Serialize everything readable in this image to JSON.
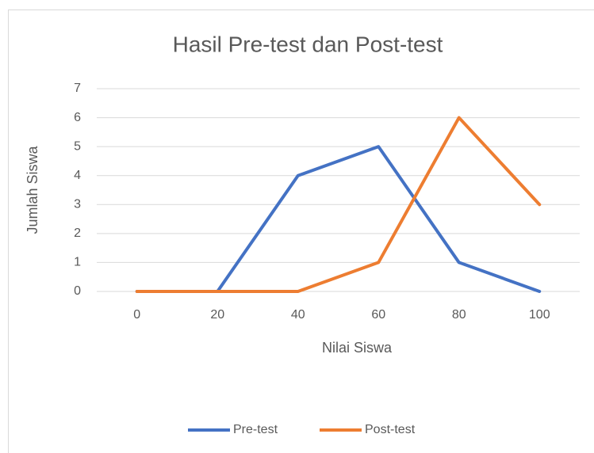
{
  "chart_data": {
    "type": "line",
    "title": "Hasil Pre-test dan Post-test",
    "x_label": "Nilai Siswa",
    "y_label": "Jumlah Siswa",
    "categories": [
      "0",
      "20",
      "40",
      "60",
      "80",
      "100"
    ],
    "series": [
      {
        "name": "Pre-test",
        "color": "#4472c4",
        "values": [
          0,
          0,
          4,
          5,
          1,
          0
        ]
      },
      {
        "name": "Post-test",
        "color": "#ed7d31",
        "values": [
          0,
          0,
          0,
          1,
          6,
          3
        ]
      }
    ],
    "ylim": [
      0,
      7
    ],
    "yticks": [
      0,
      1,
      2,
      3,
      4,
      5,
      6,
      7
    ],
    "grid": true,
    "legend": "bottom"
  }
}
